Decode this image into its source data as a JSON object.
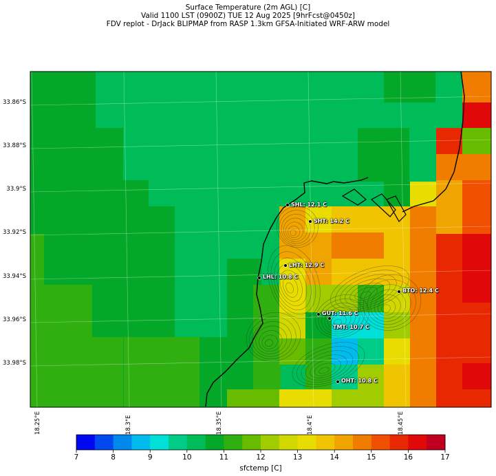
{
  "title": {
    "line1": "Surface Temperature (2m AGL) [C]",
    "line2": "Valid 1100 LST (0900Z) TUE 12 Aug 2025 [9hrFcst@0450z]",
    "line3": "FDV replot - DrJack BLIPMAP from RASP 1.3km GFSA-Initiated WRF-ARW model"
  },
  "axes": {
    "lat_labels": [
      "33.86°S",
      "33.88°S",
      "33.9°S",
      "33.92°S",
      "33.94°S",
      "33.96°S",
      "33.98°S"
    ],
    "lon_labels": [
      "18.25°E",
      "18.3°E",
      "18.35°E",
      "18.4°E",
      "18.45°E"
    ]
  },
  "stations": [
    {
      "label": "SHL: 12.1 C"
    },
    {
      "label": "SHT: 14.2 C"
    },
    {
      "label": "LHT: 12.9 C"
    },
    {
      "label": "LHL: 10.8 C"
    },
    {
      "label": "BTO: 12.4 C"
    },
    {
      "label": "GUT: 11.6 C"
    },
    {
      "label": "TMT: 10.7 C"
    },
    {
      "label": "OHT: 10.8 C"
    }
  ],
  "colorbar": {
    "title": "sfctemp [C]",
    "ticks": [
      "7",
      "8",
      "9",
      "10",
      "11",
      "12",
      "13",
      "14",
      "15",
      "16",
      "17"
    ],
    "colors": [
      "#0008f0",
      "#0048f0",
      "#0088ec",
      "#00bcec",
      "#00e0d8",
      "#00cc88",
      "#00bc58",
      "#04a828",
      "#30b010",
      "#68bc00",
      "#a0cc00",
      "#d0d800",
      "#e8dc00",
      "#f0c400",
      "#f0a400",
      "#f07c00",
      "#f05000",
      "#e82800",
      "#e00808",
      "#c00020"
    ]
  },
  "map_colors": {
    "sea_green": "#00bc58",
    "dark_green": "#04a828",
    "land_green": "#30b010",
    "coastline": "#000000"
  }
}
